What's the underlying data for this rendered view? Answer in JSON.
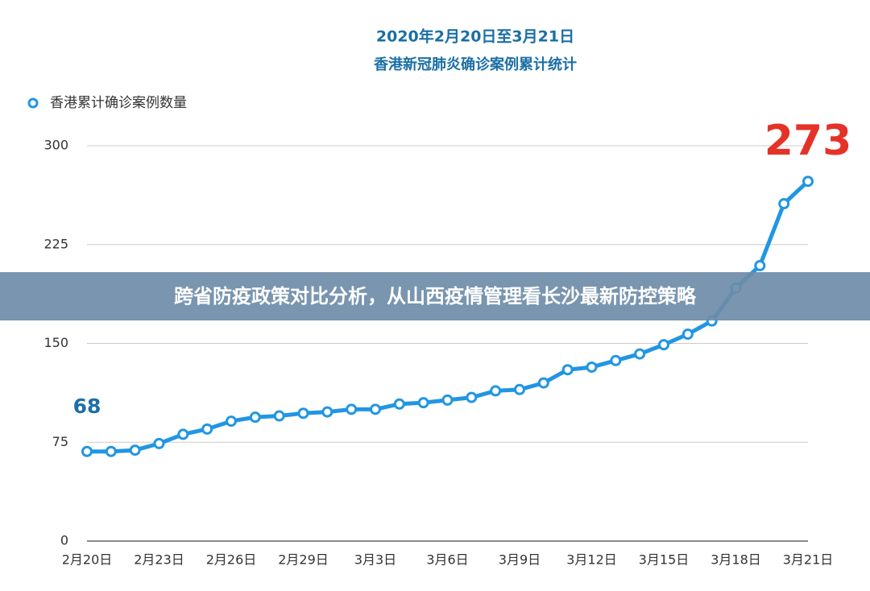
{
  "banner": "跨省防疫政策对比分析，从山西疫情管理看长沙最新防控策略",
  "chart_data": {
    "type": "line",
    "title": "2020年2月20日至3月21日",
    "subtitle": "香港新冠肺炎确诊案例累计统计",
    "categories": [
      "2月20日",
      null,
      null,
      "2月23日",
      null,
      null,
      "2月26日",
      null,
      null,
      "2月29日",
      null,
      null,
      "3月3日",
      null,
      null,
      "3月6日",
      null,
      null,
      "3月9日",
      null,
      null,
      "3月12日",
      null,
      null,
      "3月15日",
      null,
      null,
      "3月18日",
      null,
      null,
      "3月21日"
    ],
    "series": [
      {
        "name": "香港累计确诊案例数量",
        "color": "#2196e3",
        "values": [
          68,
          68,
          69,
          74,
          81,
          85,
          91,
          94,
          95,
          97,
          98,
          100,
          100,
          104,
          105,
          107,
          109,
          114,
          115,
          120,
          130,
          132,
          137,
          142,
          149,
          157,
          167,
          192,
          209,
          256,
          273
        ]
      }
    ],
    "annotations": [
      {
        "text": "68",
        "color": "#1b6fa6"
      },
      {
        "text": "273",
        "color": "#e53228"
      }
    ],
    "ylim": [
      0,
      300
    ],
    "yticks": [
      0,
      75,
      150,
      225,
      300
    ],
    "grid": true,
    "legend": "top-left"
  }
}
